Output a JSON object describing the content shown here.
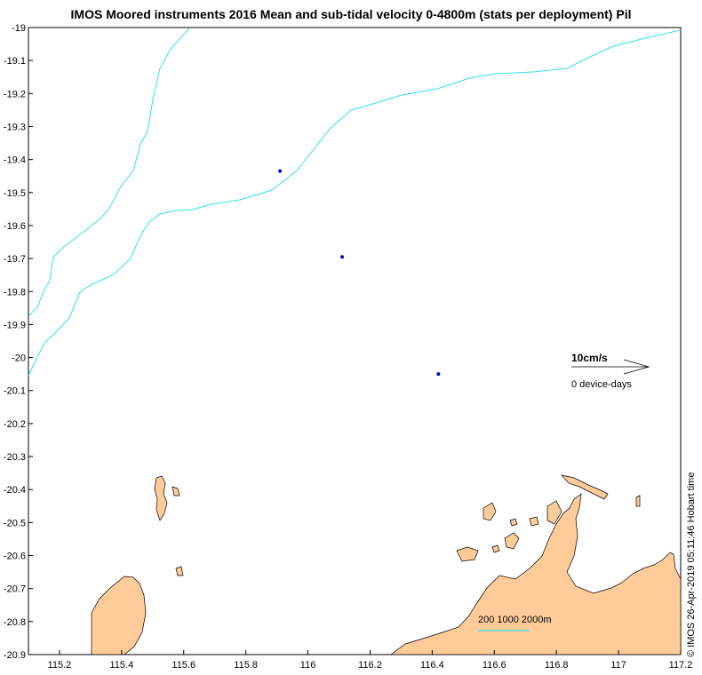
{
  "title": "IMOS Moored instruments 2016 Mean and sub-tidal velocity 0-4800m (stats per deployment) Pil",
  "timestamp": "© IMOS 26-Apr-2019 05:11:46 Hobart time",
  "legend": {
    "scale_label": "10cm/s",
    "device_label": "0 device-days",
    "depth_label": "200 1000 2000m"
  },
  "colors": {
    "land": "#FFCC99",
    "coastline": "#000000",
    "isobath": "#33E0E8",
    "station": "#0000CC"
  },
  "map": {
    "x_ticks": [
      "115.2",
      "115.4",
      "115.6",
      "115.8",
      "116",
      "116.2",
      "116.4",
      "116.6",
      "116.8",
      "117",
      "117.2"
    ],
    "y_ticks": [
      "-19",
      "-19.1",
      "-19.2",
      "-19.3",
      "-19.4",
      "-19.5",
      "-19.6",
      "-19.7",
      "-19.8",
      "-19.9",
      "-20",
      "-20.1",
      "-20.2",
      "-20.3",
      "-20.4",
      "-20.5",
      "-20.6",
      "-20.7",
      "-20.8",
      "-20.9"
    ],
    "xlim": [
      115.1,
      117.2
    ],
    "ylim": [
      -20.9,
      -19.0
    ],
    "stations": [
      {
        "lon": 115.91,
        "lat": -19.435
      },
      {
        "lon": 116.11,
        "lat": -19.695
      },
      {
        "lon": 116.42,
        "lat": -20.05
      }
    ]
  }
}
